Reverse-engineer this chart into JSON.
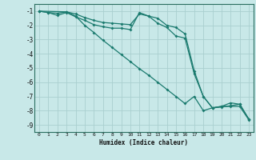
{
  "xlabel": "Humidex (Indice chaleur)",
  "xlim": [
    -0.5,
    23.5
  ],
  "ylim": [
    -9.5,
    -0.5
  ],
  "yticks": [
    -9,
    -8,
    -7,
    -6,
    -5,
    -4,
    -3,
    -2,
    -1
  ],
  "xticks": [
    0,
    1,
    2,
    3,
    4,
    5,
    6,
    7,
    8,
    9,
    10,
    11,
    12,
    13,
    14,
    15,
    16,
    17,
    18,
    19,
    20,
    21,
    22,
    23
  ],
  "bg_color": "#c8e8e8",
  "grid_color": "#aacfcf",
  "line_color": "#1a7a6e",
  "line1_x": [
    0,
    1,
    2,
    3,
    4,
    5,
    6,
    7,
    8,
    9,
    10,
    11,
    12,
    13,
    14,
    15,
    16,
    17,
    18,
    19,
    20,
    21,
    22,
    23
  ],
  "line1_y": [
    -1.0,
    -1.1,
    -1.15,
    -1.05,
    -1.2,
    -1.45,
    -1.65,
    -1.8,
    -1.85,
    -1.9,
    -1.95,
    -1.2,
    -1.35,
    -1.5,
    -2.0,
    -2.15,
    -2.6,
    -5.2,
    -7.0,
    -7.8,
    -7.75,
    -7.65,
    -7.55,
    -8.6
  ],
  "line2_x": [
    0,
    1,
    2,
    3,
    4,
    5,
    6,
    7,
    8,
    9,
    10,
    11,
    12,
    13,
    14,
    15,
    16,
    17,
    18,
    19,
    20,
    21,
    22,
    23
  ],
  "line2_y": [
    -1.0,
    -1.1,
    -1.3,
    -1.1,
    -1.4,
    -1.65,
    -1.95,
    -2.1,
    -2.2,
    -2.2,
    -2.3,
    -1.1,
    -1.35,
    -1.85,
    -2.15,
    -2.75,
    -2.9,
    -5.4,
    -7.0,
    -7.8,
    -7.7,
    -7.45,
    -7.55,
    -8.6
  ],
  "line3_x": [
    0,
    3,
    4,
    5,
    6,
    7,
    8,
    9,
    10,
    11,
    12,
    13,
    14,
    15,
    16,
    17,
    18,
    19,
    20,
    21,
    22,
    23
  ],
  "line3_y": [
    -1.0,
    -1.05,
    -1.35,
    -2.0,
    -2.5,
    -3.05,
    -3.55,
    -4.05,
    -4.55,
    -5.05,
    -5.5,
    -6.0,
    -6.5,
    -7.0,
    -7.5,
    -7.0,
    -8.0,
    -7.8,
    -7.7,
    -7.7,
    -7.7,
    -8.65
  ]
}
